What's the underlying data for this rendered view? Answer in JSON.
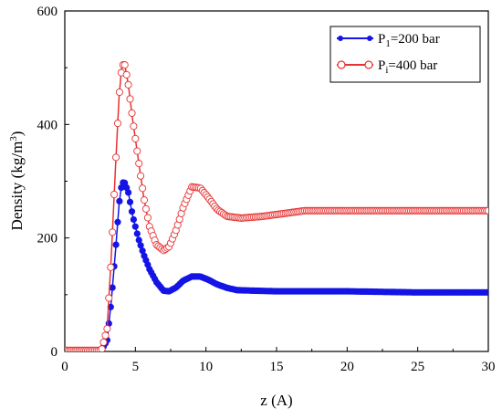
{
  "chart_data": {
    "type": "scatter",
    "xlabel": "z (A)",
    "ylabel": {
      "main": "Density (kg/m",
      "sup": "3",
      "close": ")"
    },
    "xlim": [
      0,
      30
    ],
    "ylim": [
      0,
      600
    ],
    "x_ticks": [
      0,
      5,
      10,
      15,
      20,
      25,
      30
    ],
    "y_ticks": [
      0,
      200,
      400,
      600
    ],
    "grid": false,
    "legend_position": "top-right",
    "series": [
      {
        "legend": {
          "prefix": "P",
          "sub": "1",
          "suffix": "=200 bar"
        },
        "color": "#1414e6",
        "marker": "half-filled-circle",
        "points": [
          [
            0,
            2
          ],
          [
            1,
            2
          ],
          [
            2,
            2
          ],
          [
            2.6,
            2
          ],
          [
            3.0,
            20
          ],
          [
            3.3,
            90
          ],
          [
            3.6,
            180
          ],
          [
            3.85,
            260
          ],
          [
            4.05,
            298
          ],
          [
            4.25,
            297
          ],
          [
            4.5,
            280
          ],
          [
            4.8,
            240
          ],
          [
            5.2,
            200
          ],
          [
            5.6,
            170
          ],
          [
            6.0,
            145
          ],
          [
            6.5,
            122
          ],
          [
            7.0,
            107
          ],
          [
            7.4,
            106
          ],
          [
            7.9,
            113
          ],
          [
            8.4,
            125
          ],
          [
            9.0,
            132
          ],
          [
            9.6,
            132
          ],
          [
            10.2,
            126
          ],
          [
            10.8,
            118
          ],
          [
            11.5,
            112
          ],
          [
            12.2,
            108
          ],
          [
            13.5,
            107
          ],
          [
            15,
            106
          ],
          [
            17.5,
            106
          ],
          [
            20,
            106
          ],
          [
            22.5,
            105
          ],
          [
            25,
            104
          ],
          [
            27.5,
            104
          ],
          [
            30,
            104
          ]
        ]
      },
      {
        "legend": {
          "prefix": "P",
          "sub": "i",
          "suffix": "=400 bar"
        },
        "color": "#e63232",
        "marker": "open-circle",
        "points": [
          [
            0,
            2
          ],
          [
            1,
            2
          ],
          [
            2,
            2
          ],
          [
            2.6,
            2
          ],
          [
            3.0,
            40
          ],
          [
            3.3,
            170
          ],
          [
            3.6,
            330
          ],
          [
            3.85,
            450
          ],
          [
            4.05,
            505
          ],
          [
            4.25,
            505
          ],
          [
            4.5,
            470
          ],
          [
            4.8,
            410
          ],
          [
            5.2,
            340
          ],
          [
            5.6,
            270
          ],
          [
            6.0,
            220
          ],
          [
            6.5,
            188
          ],
          [
            7.0,
            178
          ],
          [
            7.4,
            185
          ],
          [
            7.9,
            215
          ],
          [
            8.4,
            255
          ],
          [
            9.0,
            290
          ],
          [
            9.6,
            288
          ],
          [
            10.2,
            270
          ],
          [
            10.8,
            250
          ],
          [
            11.5,
            238
          ],
          [
            12.5,
            235
          ],
          [
            14,
            238
          ],
          [
            15.5,
            243
          ],
          [
            17,
            248
          ],
          [
            19,
            248
          ],
          [
            21,
            248
          ],
          [
            23,
            248
          ],
          [
            25,
            248
          ],
          [
            27,
            248
          ],
          [
            30,
            248
          ]
        ]
      }
    ]
  }
}
